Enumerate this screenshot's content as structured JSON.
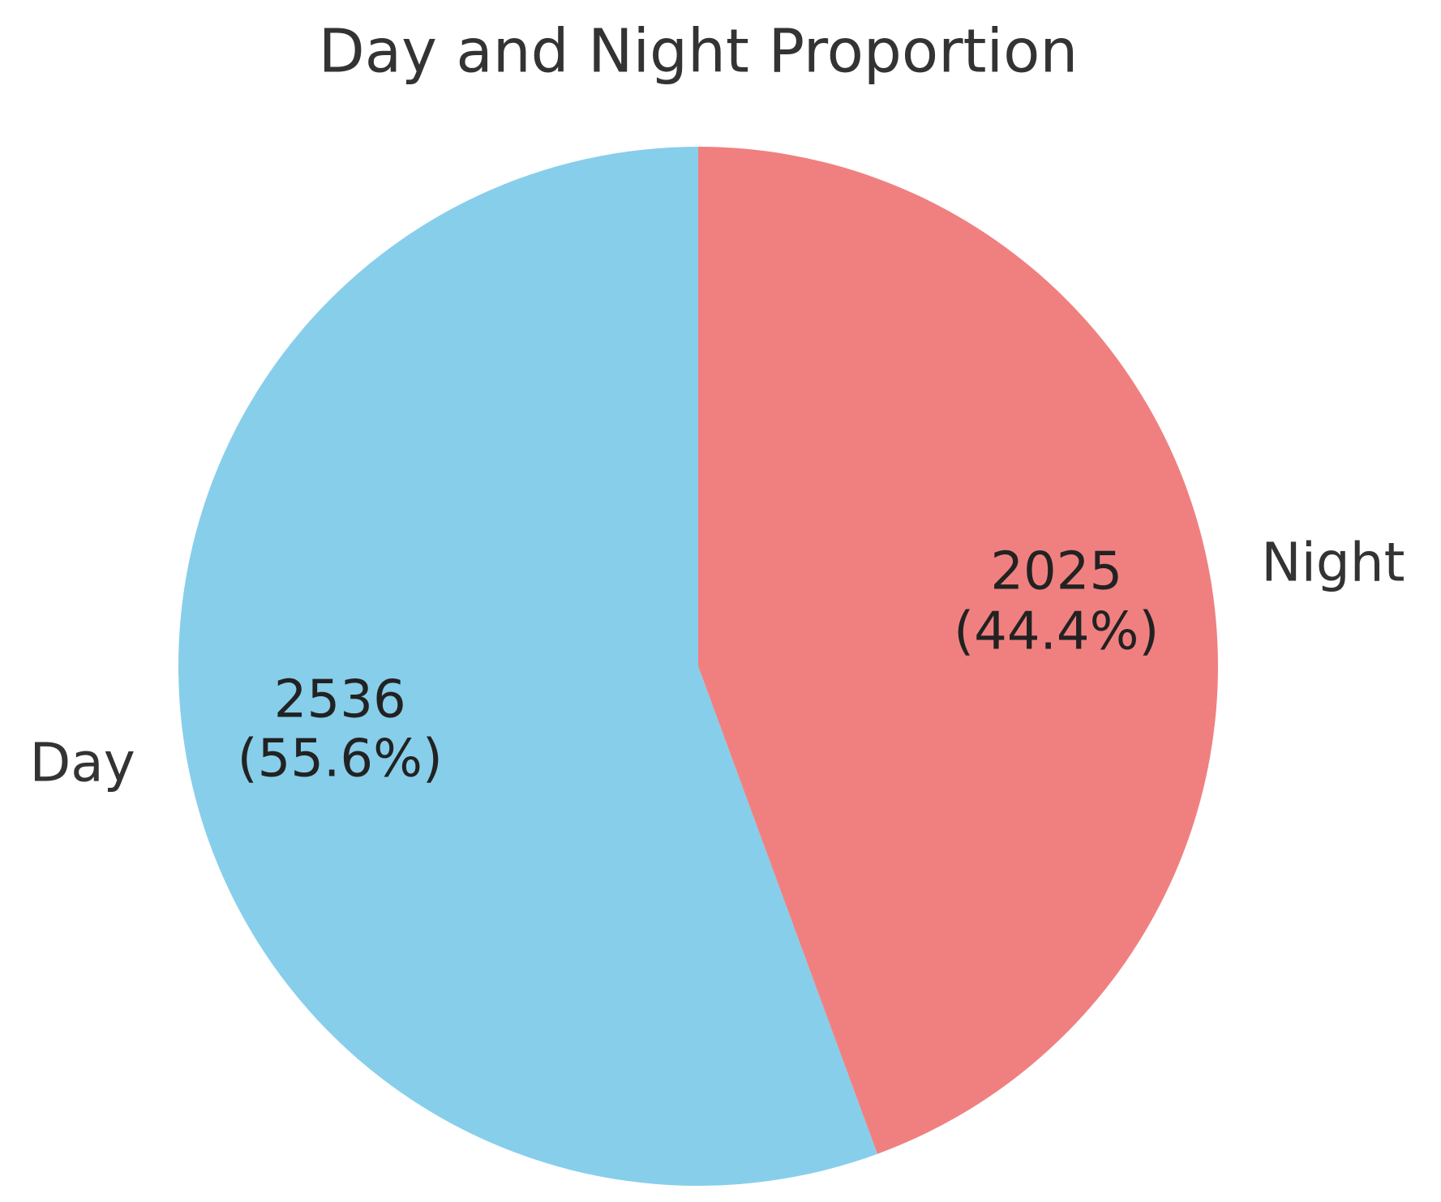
{
  "chart_data": {
    "type": "pie",
    "title": "Day and Night Proportion",
    "categories": [
      "Day",
      "Night"
    ],
    "values": [
      2536,
      2025
    ],
    "value_labels": [
      "2536\n(55.6%)",
      "2025\n(44.4%)"
    ],
    "colors": [
      "#87ceeb",
      "#f08080"
    ]
  }
}
